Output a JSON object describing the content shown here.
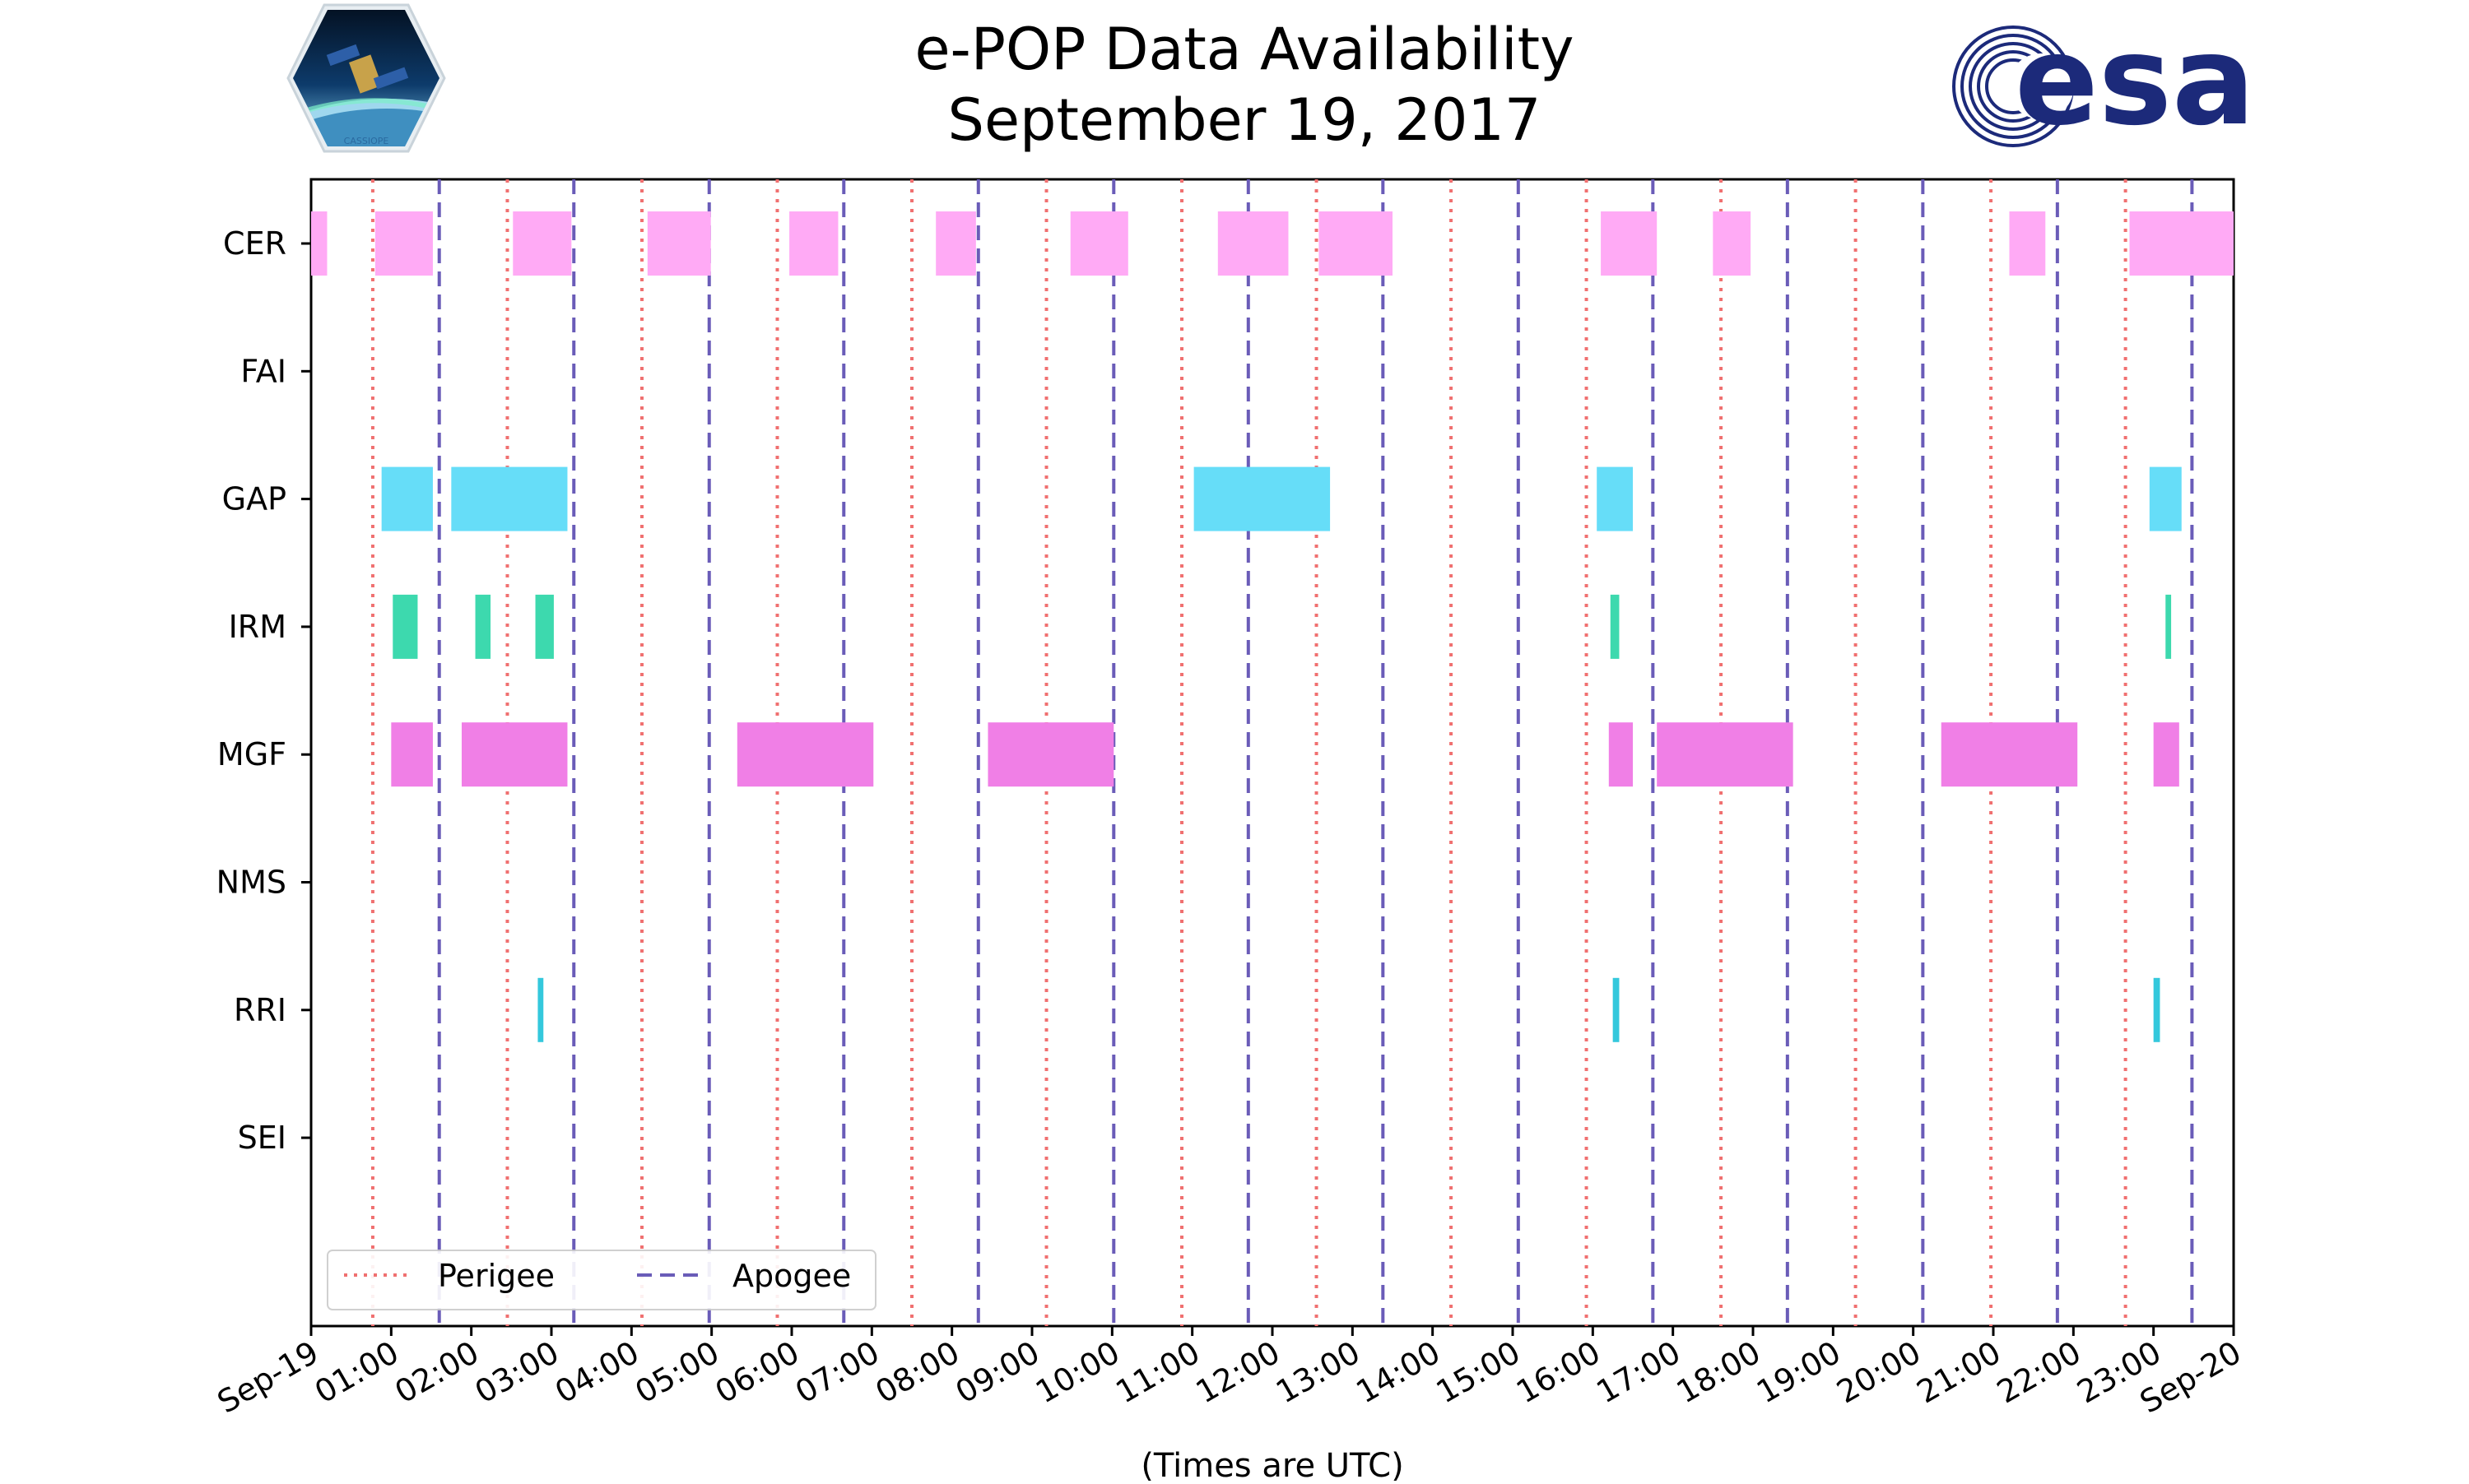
{
  "chart_data": {
    "type": "timeline",
    "title_line1": "e-POP Data Availability",
    "title_line2": "September 19, 2017",
    "xlabel": "(Times are UTC)",
    "x_unit": "hours_utc",
    "xlim": [
      0,
      24
    ],
    "x_ticks": [
      {
        "value": 0,
        "label": "Sep-19"
      },
      {
        "value": 1,
        "label": "01:00"
      },
      {
        "value": 2,
        "label": "02:00"
      },
      {
        "value": 3,
        "label": "03:00"
      },
      {
        "value": 4,
        "label": "04:00"
      },
      {
        "value": 5,
        "label": "05:00"
      },
      {
        "value": 6,
        "label": "06:00"
      },
      {
        "value": 7,
        "label": "07:00"
      },
      {
        "value": 8,
        "label": "08:00"
      },
      {
        "value": 9,
        "label": "09:00"
      },
      {
        "value": 10,
        "label": "10:00"
      },
      {
        "value": 11,
        "label": "11:00"
      },
      {
        "value": 12,
        "label": "12:00"
      },
      {
        "value": 13,
        "label": "13:00"
      },
      {
        "value": 14,
        "label": "14:00"
      },
      {
        "value": 15,
        "label": "15:00"
      },
      {
        "value": 16,
        "label": "16:00"
      },
      {
        "value": 17,
        "label": "17:00"
      },
      {
        "value": 18,
        "label": "18:00"
      },
      {
        "value": 19,
        "label": "19:00"
      },
      {
        "value": 20,
        "label": "20:00"
      },
      {
        "value": 21,
        "label": "21:00"
      },
      {
        "value": 22,
        "label": "22:00"
      },
      {
        "value": 23,
        "label": "23:00"
      },
      {
        "value": 24,
        "label": "Sep-20"
      }
    ],
    "instruments": [
      {
        "name": "CER",
        "color": "#ffaaf5",
        "intervals": [
          [
            0.0,
            0.2
          ],
          [
            0.8,
            1.52
          ],
          [
            2.52,
            3.25
          ],
          [
            4.2,
            4.99
          ],
          [
            5.97,
            6.58
          ],
          [
            7.8,
            8.3
          ],
          [
            9.48,
            10.2
          ],
          [
            11.32,
            12.2
          ],
          [
            12.58,
            13.5
          ],
          [
            16.1,
            16.8
          ],
          [
            17.5,
            17.97
          ],
          [
            21.2,
            21.65
          ],
          [
            22.7,
            24.0
          ]
        ]
      },
      {
        "name": "FAI",
        "color": "#ff9933",
        "intervals": []
      },
      {
        "name": "GAP",
        "color": "#66ddf8",
        "intervals": [
          [
            0.88,
            1.52
          ],
          [
            1.75,
            3.2
          ],
          [
            11.02,
            12.72
          ],
          [
            16.05,
            16.5
          ],
          [
            22.95,
            23.35
          ]
        ]
      },
      {
        "name": "IRM",
        "color": "#3dd9ae",
        "intervals": [
          [
            1.02,
            1.33
          ],
          [
            2.05,
            2.24
          ],
          [
            2.8,
            3.03
          ],
          [
            16.22,
            16.33
          ],
          [
            23.15,
            23.22
          ]
        ]
      },
      {
        "name": "MGF",
        "color": "#f07fe6",
        "intervals": [
          [
            1.0,
            1.52
          ],
          [
            1.88,
            3.2
          ],
          [
            5.32,
            7.02
          ],
          [
            8.45,
            10.02
          ],
          [
            16.2,
            16.5
          ],
          [
            16.8,
            18.5
          ],
          [
            20.35,
            22.05
          ],
          [
            23.0,
            23.32
          ]
        ]
      },
      {
        "name": "NMS",
        "color": "#9999ff",
        "intervals": []
      },
      {
        "name": "RRI",
        "color": "#34c8dc",
        "intervals": [
          [
            2.83,
            2.9
          ],
          [
            16.25,
            16.33
          ],
          [
            23.0,
            23.08
          ]
        ]
      },
      {
        "name": "SEI",
        "color": "#aaaaaa",
        "intervals": []
      }
    ],
    "perigee": [
      0.77,
      2.45,
      4.13,
      5.82,
      7.5,
      9.18,
      10.87,
      12.55,
      14.23,
      15.92,
      17.6,
      19.28,
      20.97,
      22.65
    ],
    "apogee": [
      1.6,
      3.28,
      4.97,
      6.65,
      8.33,
      10.02,
      11.7,
      13.38,
      15.07,
      16.75,
      18.43,
      20.12,
      21.8,
      23.48
    ],
    "perigee_color": "#f07070",
    "apogee_color": "#6a5cb8",
    "legend": {
      "perigee": "Perigee",
      "apogee": "Apogee",
      "location": "lower-left"
    }
  },
  "logos": {
    "mission": {
      "caption": "CASSIOPE"
    },
    "agency": {
      "text": "esa",
      "color": "#1c2a7a"
    }
  }
}
